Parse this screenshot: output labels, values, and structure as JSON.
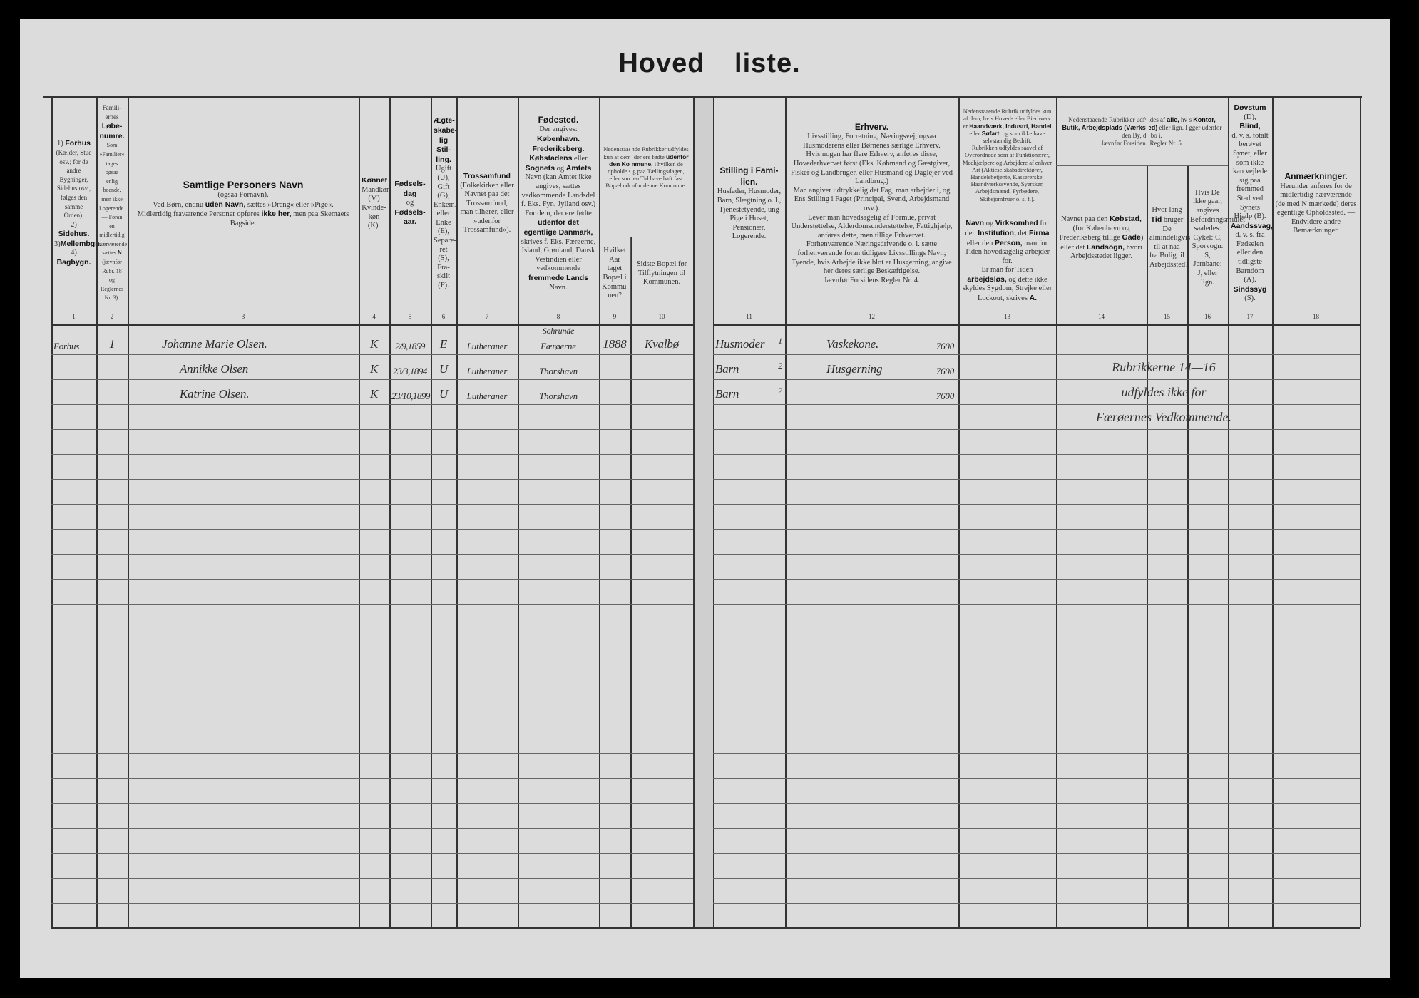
{
  "title": "Hoved liste.",
  "headers": [
    {
      "num": "1",
      "html": "1) <b>Forhus</b><br><span style='font-size:9px'>(Kælder, Stue osv.; for de andre Bygninger, Sidehus osv., følges den samme Orden).</span><br>2) <b>Sidehus.</b><br>3)<b>Mellembgn.</b><br>4) <b>Bagbygn.</b>"
    },
    {
      "num": "2",
      "html": "<span style='font-size:9px'>Famili-ernes</span><br><b>Løbe-numre.</b><br><span style='font-size:8px'>Som »Familier« tages ogsaa enlig boende, men ikke Logerende. — Foran en midlertidig nærværende sættes <b>N</b> (jævnfør Rubr. 18 og Reglernes Nr. 3).</span>"
    },
    {
      "num": "3",
      "html": "<b class='big'>Samtlige Personers Navn</b><br>(ogsaa Fornavn).<br>Ved Børn, endnu <b>uden Navn,</b> sættes »Dreng« eller »Pige«.<br>Midlertidig fraværende Personer opføres <b>ikke her,</b> men paa Skemaets Bagside."
    },
    {
      "num": "4",
      "html": "<b>Kønnet</b><br>Mandkøn (M)<br>Kvinde-køn (K)."
    },
    {
      "num": "5",
      "html": "<b>Fødsels-dag</b><br>og<br><b>Fødsels-aar.</b>"
    },
    {
      "num": "6",
      "html": "<b>Ægte-skabe-lig Stil-ling.</b><br>Ugift (U), Gift (G), Enkem. eller Enke (E), Separe-ret (S), Fra-skilt (F)."
    },
    {
      "num": "7",
      "html": "<b>Trossamfund</b><br>(Folkekirken eller Navnet paa det Trossamfund, man tilhører, eller »udenfor Trossamfund«)."
    },
    {
      "num": "8",
      "html": "<b class='bg'>Fødested.</b><br>Der angives:<br><b>København. Frederiksberg. Købstadens</b> eller <b>Sognets</b> og <b>Amtets</b> Navn (kan Amtet ikke angives, sættes vedkommende Landsdel f. Eks. Fyn, Jylland osv.)<br>For dem, der ere fødte <b>udenfor det egentlige Danmark,</b> skrives f. Eks. Færøerne, Island, Grønland, Dansk Vestindien eller vedkommende <b>fremmede Lands</b> Navn."
    },
    {
      "num": "9",
      "html": "Hvilket Aar taget Bopæl i Kommu-nen?"
    },
    {
      "num": "10",
      "html": "Sidste Bopæl før Tilflytningen til Kommunen."
    },
    {
      "num": "11",
      "html": "<b class='bg'>Stilling i Fami-lien.</b><br>Husfader, Husmoder, Barn, Slægtning o. l., Tjenestetyende, ung Pige i Huset, Pensionær, Logerende."
    },
    {
      "num": "12",
      "html": "<b class='bg'>Erhverv.</b><br>Livsstilling, Forretning, Næringsvej; ogsaa Husmoderens eller Børnenes særlige Erhverv.<br>Hvis nogen har flere Erhverv, anføres disse, Hovederhvervet først (Eks. Købmand og Gæstgiver, Fisker og Landbruger, eller Husmand og Daglejer ved Landbrug.)<br>Man angiver udtrykkelig det Fag, man arbejder i, og Ens Stilling i Faget (Principal, Svend, Arbejdsmand osv.).<br>Lever man hovedsagelig af Formue, privat Understøttelse, Alderdomsunderstøttelse, Fattighjælp, anføres dette, men tillige Erhvervet.<br>Forhenværende Næringsdrivende o. l. sætte forhenværende foran tidligere Livsstillings Navn; Tyende, hvis Arbejde ikke blot er Husgerning, angive her deres særlige Beskæftigelse.<br>Jævnfør Forsidens Regler Nr. 4."
    },
    {
      "num": "13",
      "html": "<b>Navn</b> og <b>Virksomhed</b> for den <b>Institution,</b> det <b>Firma</b> eller den <b>Person,</b> man for Tiden hovedsagelig arbejder for.<br>Er man for Tiden <b>arbejdsløs,</b> og dette ikke skyldes Sygdom, Strejke eller Lockout, skrives <b>A.</b>"
    },
    {
      "num": "14",
      "html": "Navnet paa den <b>Købstad,</b> (for København og Frederiksberg tillige <b>Gade</b>) eller det <b>Landsogn,</b> hvori Arbejdsstedet ligger."
    },
    {
      "num": "15",
      "html": "Hvor lang <b>Tid</b> bruger De almindeligvis til at naa fra Bolig til Arbejdssted?"
    },
    {
      "num": "16",
      "html": "Hvis De ikke gaar, angives Befordringsmidlet saaledes: Cykel: C, Sporvogn: S, Jernbane: J, eller lign."
    },
    {
      "num": "17",
      "html": "<b>Døvstum</b> (D),<br><b>Blind,</b><br>d. v. s. totalt berøvet Synet, eller som ikke kan vejlede sig paa fremmed Sted ved Synets Hjælp (B).<br><b>Aandssvag,</b><br>d. v. s. fra Fødselen eller den tidligste Barndom (A).<br><b>Sindssyg</b> (S)."
    },
    {
      "num": "18",
      "html": "<b class='bg'>Anmærkninger.</b><br>Herunder anføres for de midlertidig nærværende (de med N mærkede) deres egentlige Opholdssted. — Endvidere andre Bemærkninger."
    }
  ],
  "group_headers": {
    "col9_10": "Nedenstaaende Rubrikker udfyldes kun af dem, der ere fødte <b>udenfor den Kommune,</b> i hvilken de opholde sig paa Tællingsdagen, eller som en Tid have haft fast Bopæl udenfor denne Kommune.",
    "col13": "Nedenstaaende Rubrik udfyldes kun af dem, hvis Hoved- eller Bierhverv er <b>Haandværk, Industri, Handel</b> eller <b>Søfart,</b> og som ikke have selvstændig Bedrift.<br>Rubrikken udfyldes saavel af Overordnede som af Funktionærer, Medhjælpere og Arbejdere af enhver Art (Aktieselskabsdirektører, Handelsbetjente, Kassererske, Haandværkssvende, Syersker, Arbejdsmænd, Fyrbødere, Skibsjomfruer o. s. f.).",
    "col14_16": "Nedenstaaende Rubrikker udfyldes af <b>alle,</b> hvis <b>Kontor, Butik, Arbejdsplads (Værksted)</b> eller lign. ligger udenfor den By, de bo i.<br>Jævnfør Forsidens Regler Nr. 5."
  },
  "rows": [
    {
      "building": "Forhus",
      "family_no": "1",
      "name": "Johanne Marie Olsen.",
      "sex": "K",
      "birth": "2/9,1859",
      "marital": "E",
      "religion": "Lutheraner",
      "birthplace_above": "Sohrunde",
      "birthplace": "Færøerne",
      "year_moved": "1888",
      "last_residence": "Kvalbø",
      "family_position": "Husmoder",
      "family_mark": "1",
      "occupation": "Vaskekone.",
      "code": "7600"
    },
    {
      "building": "",
      "family_no": "",
      "name": "Annikke Olsen",
      "sex": "K",
      "birth": "23/3,1894",
      "marital": "U",
      "religion": "Lutheraner",
      "birthplace_above": "",
      "birthplace": "Thorshavn",
      "year_moved": "",
      "last_residence": "",
      "family_position": "Barn",
      "family_mark": "2",
      "occupation": "Husgerning",
      "code": "7600"
    },
    {
      "building": "",
      "family_no": "",
      "name": "Katrine Olsen.",
      "sex": "K",
      "birth": "23/10,1899",
      "marital": "U",
      "religion": "Lutheraner",
      "birthplace_above": "",
      "birthplace": "Thorshavn",
      "year_moved": "",
      "last_residence": "",
      "family_position": "Barn",
      "family_mark": "2",
      "occupation": "",
      "code": "7600"
    }
  ],
  "stamp_note": [
    "Rubrikkerne 14—16",
    "udfyldes ikke for",
    "Færøernes Vedkommende."
  ]
}
